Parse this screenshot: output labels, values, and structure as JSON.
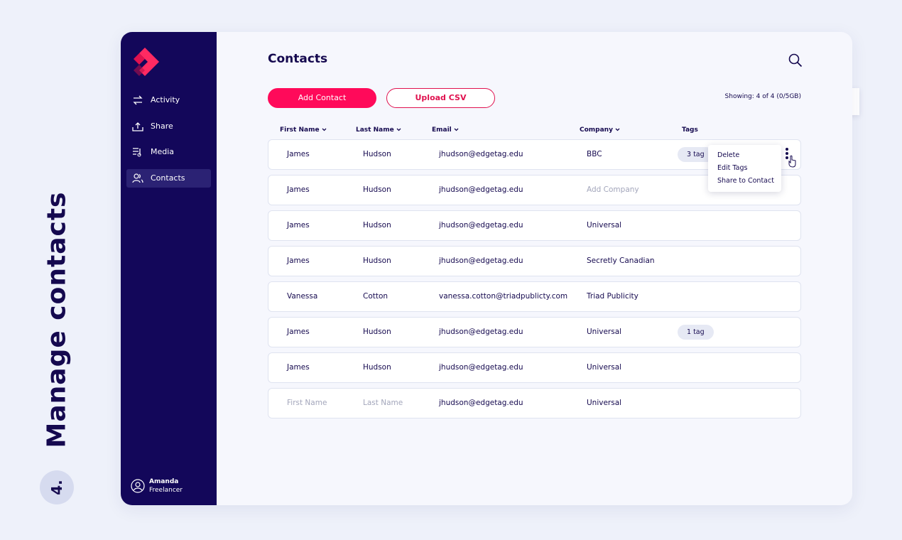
{
  "side_label": {
    "title": "Manage contacts",
    "step": "4."
  },
  "sidebar": {
    "nav": [
      "Activity",
      "Share",
      "Media",
      "Contacts"
    ],
    "user": {
      "name": "Amanda",
      "role": "Freelancer"
    }
  },
  "header": {
    "title": "Contacts",
    "buttons": [
      "Add Contact",
      "Upload CSV"
    ],
    "showing": "Showing: 4 of 4 (0/5GB)"
  },
  "table": {
    "columns": [
      "First Name",
      "Last Name",
      "Email",
      "Company",
      "Tags"
    ],
    "rows": [
      {
        "cells": [
          "James",
          "Hudson",
          "jhudson@edgetag.edu",
          "BBC"
        ],
        "tag": "3 tag"
      },
      {
        "cells": [
          "James",
          "Hudson",
          "jhudson@edgetag.edu",
          "Add Company"
        ]
      },
      {
        "cells": [
          "James",
          "Hudson",
          "jhudson@edgetag.edu",
          "Universal"
        ]
      },
      {
        "cells": [
          "James",
          "Hudson",
          "jhudson@edgetag.edu",
          "Secretly Canadian"
        ]
      },
      {
        "cells": [
          "Vanessa",
          "Cotton",
          "vanessa.cotton@triadpublicty.com",
          "Triad Publicity"
        ]
      },
      {
        "cells": [
          "James",
          "Hudson",
          "jhudson@edgetag.edu",
          "Universal"
        ],
        "tag": "1 tag"
      },
      {
        "cells": [
          "James",
          "Hudson",
          "jhudson@edgetag.edu",
          "Universal"
        ]
      },
      {
        "cells": [
          "First Name",
          "Last Name",
          "jhudson@edgetag.edu",
          "Universal"
        ]
      }
    ]
  },
  "menu": [
    "Delete",
    "Edit Tags",
    "Share to Contact"
  ]
}
